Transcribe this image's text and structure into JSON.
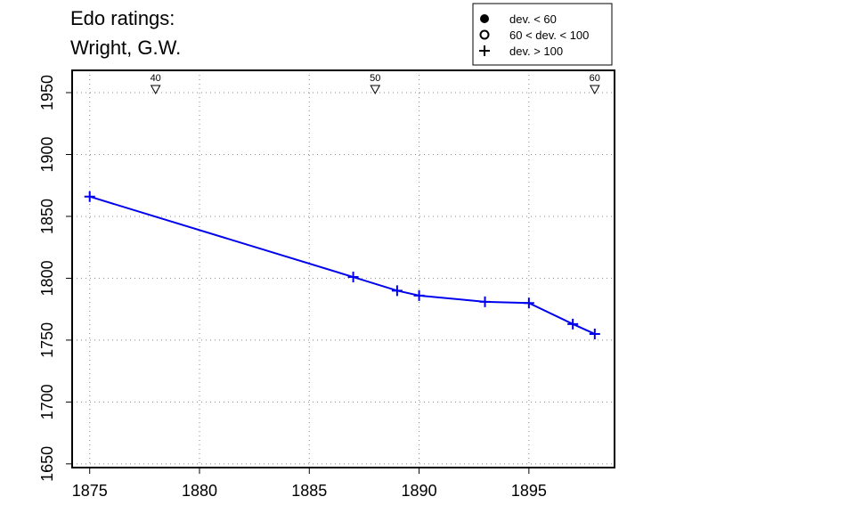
{
  "chart_data": {
    "type": "line",
    "title_lines": [
      "Edo ratings:",
      "Wright, G.W."
    ],
    "xlabel": "",
    "ylabel": "",
    "xlim": [
      1874.2,
      1898.9
    ],
    "ylim": [
      1647,
      1968
    ],
    "x_ticks": [
      1875,
      1880,
      1885,
      1890,
      1895
    ],
    "y_ticks": [
      1650,
      1700,
      1750,
      1800,
      1850,
      1900,
      1950
    ],
    "grid": true,
    "series": [
      {
        "color": "#0000ee",
        "marker": "plus",
        "x": [
          1875,
          1887,
          1889,
          1890,
          1893,
          1895,
          1897,
          1898
        ],
        "y": [
          1866,
          1801,
          1790,
          1786,
          1781,
          1780,
          1763,
          1755
        ]
      }
    ],
    "top_markers": [
      {
        "x": 1878,
        "label": "40"
      },
      {
        "x": 1888,
        "label": "50"
      },
      {
        "x": 1898,
        "label": "60"
      }
    ],
    "legend": {
      "position": "top-right",
      "entries": [
        {
          "symbol": "filled-circle",
          "label": "dev. < 60"
        },
        {
          "symbol": "open-circle",
          "label": "60 < dev. < 100"
        },
        {
          "symbol": "plus",
          "label": "dev. > 100"
        }
      ]
    }
  }
}
